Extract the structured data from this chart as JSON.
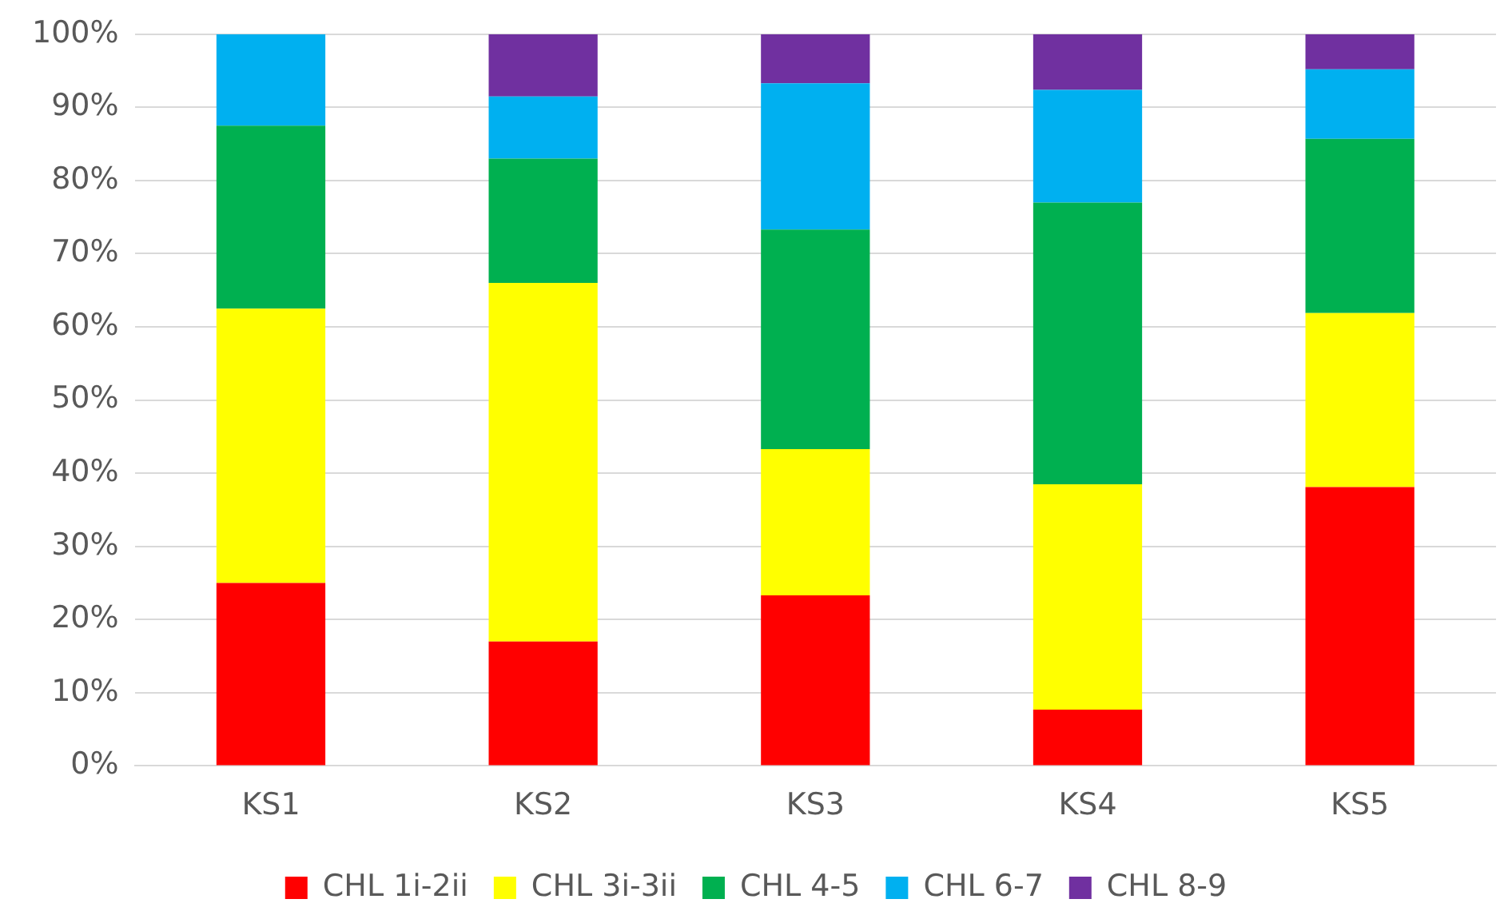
{
  "chart_data": {
    "type": "bar",
    "stacked": true,
    "categories": [
      "KS1",
      "KS2",
      "KS3",
      "KS4",
      "KS5"
    ],
    "series": [
      {
        "name": "CHL 1i-2ii",
        "color": "#ff0000",
        "values": [
          25,
          17,
          23.3,
          7.7,
          38.1
        ]
      },
      {
        "name": "CHL 3i-3ii",
        "color": "#ffff00",
        "values": [
          37.5,
          49,
          20,
          30.8,
          23.8
        ]
      },
      {
        "name": "CHL 4-5",
        "color": "#00b050",
        "values": [
          25,
          17,
          30,
          38.5,
          23.8
        ]
      },
      {
        "name": "CHL 6-7",
        "color": "#00b0f0",
        "values": [
          12.5,
          8.5,
          20,
          15.4,
          9.5
        ]
      },
      {
        "name": "CHL 8-9",
        "color": "#7030a0",
        "values": [
          0,
          8.5,
          6.7,
          7.6,
          4.8
        ]
      }
    ],
    "ylim": [
      0,
      100
    ],
    "yticks": [
      {
        "value": 0,
        "label": "0%"
      },
      {
        "value": 10,
        "label": "10%"
      },
      {
        "value": 20,
        "label": "20%"
      },
      {
        "value": 30,
        "label": "30%"
      },
      {
        "value": 40,
        "label": "40%"
      },
      {
        "value": 50,
        "label": "50%"
      },
      {
        "value": 60,
        "label": "60%"
      },
      {
        "value": 70,
        "label": "70%"
      },
      {
        "value": 80,
        "label": "80%"
      },
      {
        "value": 90,
        "label": "90%"
      },
      {
        "value": 100,
        "label": "100%"
      }
    ],
    "grid": "y",
    "legend": "bottom"
  }
}
